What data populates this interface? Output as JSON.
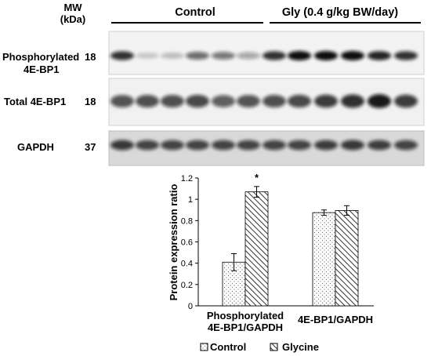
{
  "blot": {
    "mw_label": "MW",
    "mw_unit": "(kDa)",
    "groups": [
      {
        "label": "Control",
        "lanes": 6
      },
      {
        "label": "Gly (0.4 g/kg BW/day)",
        "lanes": 6
      }
    ],
    "rows": [
      {
        "label_lines": [
          "Phosphorylated",
          "4E-BP1"
        ],
        "mw": "18",
        "lane_intensity": [
          0.85,
          0.18,
          0.22,
          0.6,
          0.55,
          0.35,
          0.85,
          1.0,
          1.0,
          1.0,
          0.9,
          0.85
        ]
      },
      {
        "label_lines": [
          "Total 4E-BP1"
        ],
        "mw": "18",
        "lane_intensity": [
          0.7,
          0.72,
          0.72,
          0.75,
          0.65,
          0.7,
          0.72,
          0.75,
          0.8,
          0.85,
          0.95,
          0.8
        ]
      },
      {
        "label_lines": [
          "GAPDH"
        ],
        "mw": "37",
        "lane_intensity": [
          0.8,
          0.75,
          0.75,
          0.75,
          0.75,
          0.75,
          0.75,
          0.75,
          0.78,
          0.8,
          0.78,
          0.75
        ]
      }
    ]
  },
  "chart_data": {
    "type": "bar",
    "categories": [
      "Phosphorylated 4E-BP1/GAPDH",
      "4E-BP1/GAPDH"
    ],
    "category_label_lines": [
      [
        "Phosphorylated",
        "4E-BP1/GAPDH"
      ],
      [
        "4E-BP1/GAPDH"
      ]
    ],
    "series": [
      {
        "name": "Control",
        "values": [
          0.41,
          0.875
        ],
        "errors": [
          0.08,
          0.025
        ],
        "pattern": "dots"
      },
      {
        "name": "Glycine",
        "values": [
          1.07,
          0.895
        ],
        "errors": [
          0.05,
          0.045
        ],
        "pattern": "hatch"
      }
    ],
    "significance": [
      "*",
      ""
    ],
    "ylabel": "Protein expression ratio",
    "ylim": [
      0,
      1.2
    ],
    "yticks": [
      "0",
      "0.2",
      "0.4",
      "0.6",
      "0.8",
      "1",
      "1.2"
    ],
    "legend": {
      "position": "bottom"
    }
  }
}
